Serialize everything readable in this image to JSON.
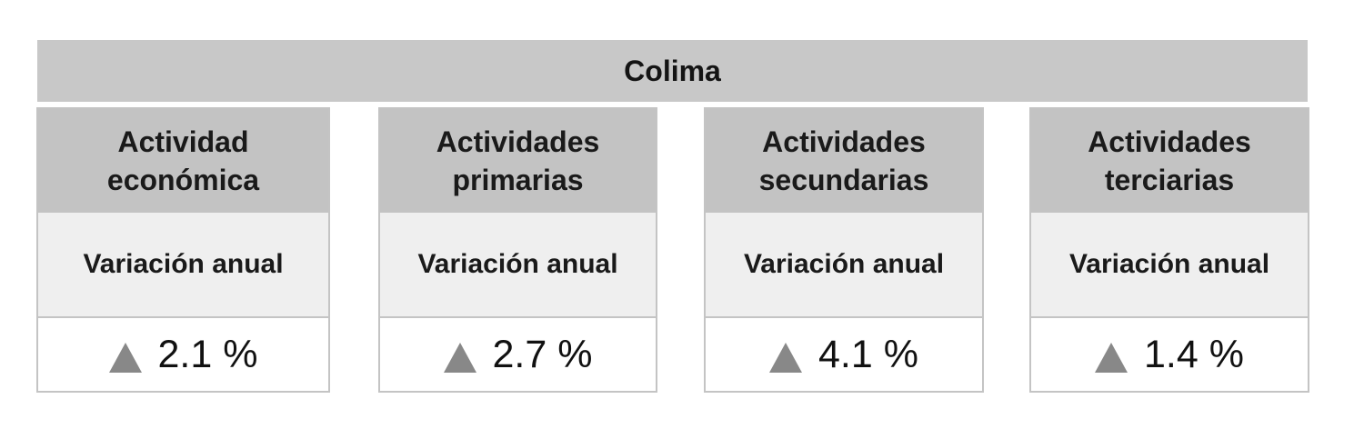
{
  "banner": {
    "title": "Colima"
  },
  "cards": [
    {
      "title": "Actividad\neconómica",
      "subtitle": "Variación anual",
      "value": "2.1 %",
      "trend": "up-triangle-icon"
    },
    {
      "title": "Actividades\nprimarias",
      "subtitle": "Variación anual",
      "value": "2.7 %",
      "trend": "up-triangle-icon"
    },
    {
      "title": "Actividades\nsecundarias",
      "subtitle": "Variación anual",
      "value": "4.1 %",
      "trend": "up-triangle-icon"
    },
    {
      "title": "Actividades\nterciarias",
      "subtitle": "Variación anual",
      "value": "1.4 %",
      "trend": "up-triangle-icon"
    }
  ],
  "colors": {
    "header_gray": "#c3c3c3",
    "subheader_gray": "#efefef",
    "triangle_gray": "#888888"
  }
}
